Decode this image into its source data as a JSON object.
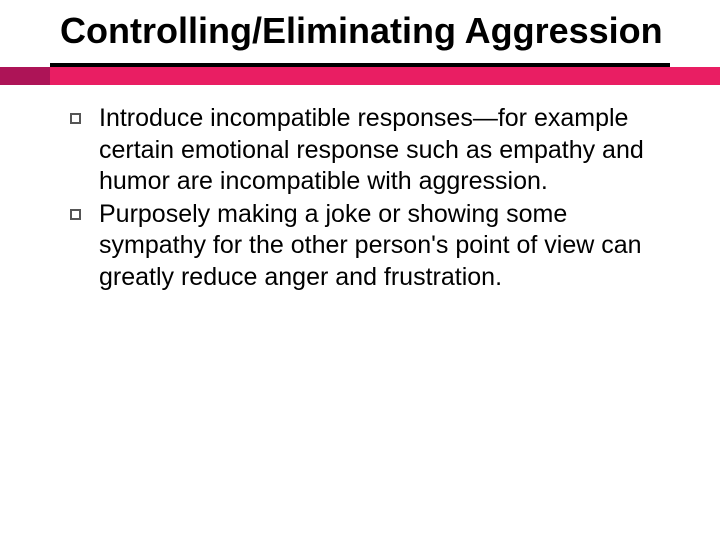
{
  "slide": {
    "title": "Controlling/Eliminating Aggression",
    "title_fontsize": 36,
    "title_color": "#000000",
    "underline_color": "#000000",
    "accent_color": "#e91e63",
    "accent_dark_color": "#ad1457",
    "background_color": "#ffffff",
    "bullets": [
      {
        "text": "Introduce incompatible responses—for example certain emotional response such as empathy and humor are incompatible with aggression."
      },
      {
        "text": "Purposely making a joke or showing some sympathy for the other person's point of view can greatly reduce anger and frustration."
      }
    ],
    "bullet_fontsize": 25,
    "bullet_text_color": "#000000",
    "bullet_marker_border": "#555555"
  }
}
